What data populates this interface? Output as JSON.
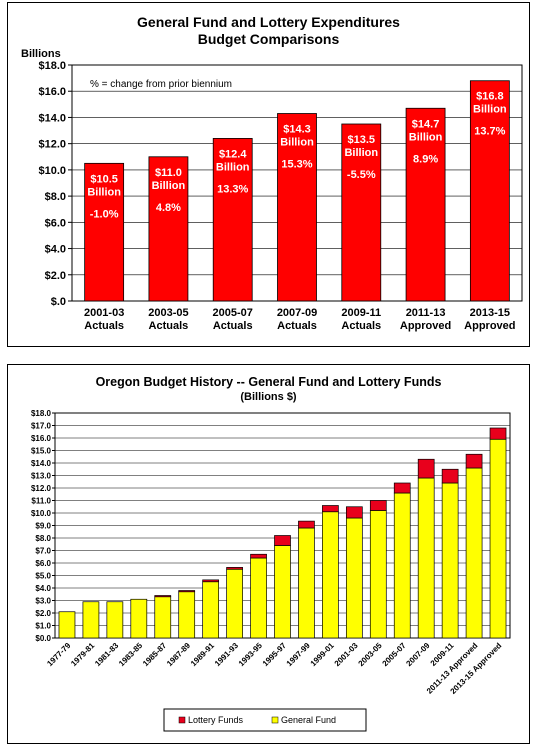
{
  "chart_data": [
    {
      "type": "bar",
      "title": "General Fund and Lottery Expenditures",
      "subtitle": "Budget Comparisons",
      "ylabel": "Billions",
      "annotation": "% = change from prior biennium",
      "ylim": [
        0,
        18
      ],
      "yticks": [
        "$.0",
        "$2.0",
        "$4.0",
        "$6.0",
        "$8.0",
        "$10.0",
        "$12.0",
        "$14.0",
        "$16.0",
        "$18.0"
      ],
      "categories": [
        "2001-03 Actuals",
        "2003-05 Actuals",
        "2005-07 Actuals",
        "2007-09 Actuals",
        "2009-11 Actuals",
        "2011-13 Approved",
        "2013-15 Approved"
      ],
      "values": [
        10.5,
        11.0,
        12.4,
        14.3,
        13.5,
        14.7,
        16.8
      ],
      "value_labels": [
        "$10.5 Billion",
        "$11.0 Billion",
        "$12.4 Billion",
        "$14.3 Billion",
        "$13.5 Billion",
        "$14.7 Billion",
        "$16.8 Billion"
      ],
      "pct_labels": [
        "-1.0%",
        "4.8%",
        "13.3%",
        "15.3%",
        "-5.5%",
        "8.9%",
        "13.7%"
      ],
      "bar_color": "#ff0000",
      "grid": "horizontal"
    },
    {
      "type": "bar",
      "stacked": true,
      "title": "Oregon Budget History -- General Fund and Lottery Funds",
      "subtitle": "(Billions $)",
      "ylim": [
        0,
        18
      ],
      "yticks": [
        "$0.0",
        "$1.0",
        "$2.0",
        "$3.0",
        "$4.0",
        "$5.0",
        "$6.0",
        "$7.0",
        "$8.0",
        "$9.0",
        "$10.0",
        "$11.0",
        "$12.0",
        "$13.0",
        "$14.0",
        "$15.0",
        "$16.0",
        "$17.0",
        "$18.0"
      ],
      "categories": [
        "1977-79",
        "1979-81",
        "1981-83",
        "1983-85",
        "1985-87",
        "1987-89",
        "1989-91",
        "1991-93",
        "1993-95",
        "1995-97",
        "1997-99",
        "1999-01",
        "2001-03",
        "2003-05",
        "2005-07",
        "2007-09",
        "2009-11",
        "2011-13 Approved",
        "2013-15 Approved"
      ],
      "series": [
        {
          "name": "General Fund",
          "color": "#ffff00",
          "values": [
            2.1,
            2.9,
            2.9,
            3.1,
            3.3,
            3.7,
            4.5,
            5.5,
            6.4,
            7.4,
            8.8,
            10.1,
            9.6,
            10.2,
            11.6,
            12.8,
            12.4,
            13.6,
            15.9
          ]
        },
        {
          "name": "Lottery Funds",
          "color": "#e8001c",
          "values": [
            0.0,
            0.0,
            0.0,
            0.0,
            0.1,
            0.1,
            0.15,
            0.15,
            0.3,
            0.8,
            0.55,
            0.5,
            0.9,
            0.8,
            0.8,
            1.5,
            1.1,
            1.1,
            0.9
          ]
        }
      ],
      "legend_position": "bottom",
      "grid": "horizontal"
    }
  ]
}
